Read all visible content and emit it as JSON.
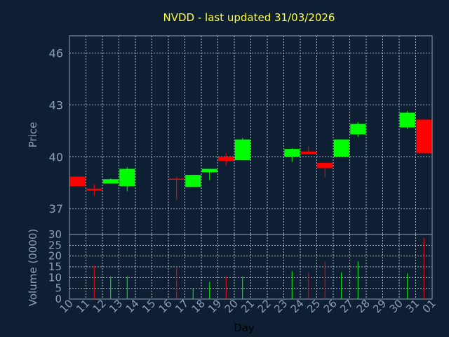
{
  "chart_data": {
    "type": "candlestick",
    "title": "NVDD - last updated 31/03/2026",
    "xlabel": "Day",
    "price_panel": {
      "ylabel": "Price",
      "ylim": [
        35.5,
        47
      ],
      "yticks": [
        37,
        40,
        43,
        46
      ],
      "grid": true
    },
    "volume_panel": {
      "ylabel": "Volume (0000)",
      "ylim": [
        0,
        30
      ],
      "yticks": [
        0,
        5,
        10,
        15,
        20,
        25,
        30
      ],
      "grid": true
    },
    "x_ticks": [
      "10",
      "11",
      "12",
      "13",
      "14",
      "15",
      "16",
      "17",
      "18",
      "19",
      "20",
      "21",
      "22",
      "23",
      "24",
      "25",
      "26",
      "27",
      "28",
      "29",
      "30",
      "31",
      "01"
    ],
    "up_color": "#00ff00",
    "down_color": "#ff0000",
    "candles": [
      {
        "day": "10",
        "open": 38.85,
        "high": 38.85,
        "low": 38.3,
        "close": 38.3
      },
      {
        "day": "11",
        "open": 38.15,
        "high": 38.4,
        "low": 37.75,
        "close": 38.05
      },
      {
        "day": "12",
        "open": 38.45,
        "high": 38.75,
        "low": 38.45,
        "close": 38.7
      },
      {
        "day": "13",
        "open": 38.3,
        "high": 39.4,
        "low": 38.0,
        "close": 39.3
      },
      {
        "day": "16",
        "open": 38.7,
        "high": 38.85,
        "low": 37.5,
        "close": 38.65
      },
      {
        "day": "17",
        "open": 38.25,
        "high": 38.95,
        "low": 38.25,
        "close": 38.95
      },
      {
        "day": "18",
        "open": 39.1,
        "high": 39.3,
        "low": 38.65,
        "close": 39.3
      },
      {
        "day": "19",
        "open": 40.0,
        "high": 40.2,
        "low": 39.5,
        "close": 39.75
      },
      {
        "day": "20",
        "open": 39.8,
        "high": 41.1,
        "low": 39.8,
        "close": 41.0
      },
      {
        "day": "23",
        "open": 40.0,
        "high": 40.5,
        "low": 39.7,
        "close": 40.45
      },
      {
        "day": "24",
        "open": 40.3,
        "high": 40.6,
        "low": 40.15,
        "close": 40.15
      },
      {
        "day": "25",
        "open": 39.65,
        "high": 39.65,
        "low": 38.8,
        "close": 39.35
      },
      {
        "day": "26",
        "open": 40.0,
        "high": 41.0,
        "low": 40.0,
        "close": 41.0
      },
      {
        "day": "27",
        "open": 41.3,
        "high": 42.0,
        "low": 41.15,
        "close": 41.9
      },
      {
        "day": "30",
        "open": 41.7,
        "high": 42.65,
        "low": 41.6,
        "close": 42.55
      },
      {
        "day": "31",
        "open": 42.15,
        "high": 42.15,
        "low": 40.2,
        "close": 40.2
      }
    ],
    "volume": [
      {
        "day": "11",
        "value": 15.5
      },
      {
        "day": "12",
        "value": 10.5
      },
      {
        "day": "13",
        "value": 10.5
      },
      {
        "day": "16",
        "value": 14.5
      },
      {
        "day": "17",
        "value": 5
      },
      {
        "day": "18",
        "value": 8
      },
      {
        "day": "19",
        "value": 10.5
      },
      {
        "day": "20",
        "value": 10.5
      },
      {
        "day": "23",
        "value": 13
      },
      {
        "day": "24",
        "value": 12.5
      },
      {
        "day": "25",
        "value": 17.5
      },
      {
        "day": "26",
        "value": 12.5
      },
      {
        "day": "27",
        "value": 17.5
      },
      {
        "day": "30",
        "value": 12
      },
      {
        "day": "31",
        "value": 28.5
      }
    ]
  }
}
